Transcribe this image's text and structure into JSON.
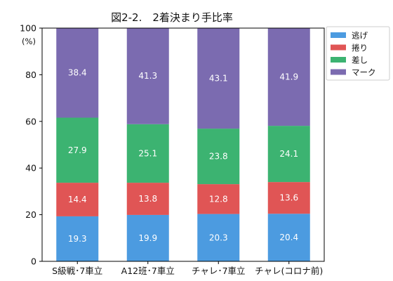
{
  "chart_data": {
    "type": "bar",
    "stacked": true,
    "title": "図2-2.　2着決まり手比率",
    "ylabel": "(%)",
    "ylim": [
      0,
      100
    ],
    "yticks": [
      0,
      20,
      40,
      60,
      80,
      100
    ],
    "grid": false,
    "legend": "right, outside top",
    "categories": [
      "S級戦･7車立",
      "A12班･7車立",
      "チャレ･7車立",
      "チャレ(コロナ前)"
    ],
    "series": [
      {
        "name": "逃げ",
        "color": "#4c9be0",
        "values": [
          19.3,
          19.9,
          20.3,
          20.4
        ]
      },
      {
        "name": "捲り",
        "color": "#e05555",
        "values": [
          14.4,
          13.8,
          12.8,
          13.6
        ]
      },
      {
        "name": "差し",
        "color": "#3cb371",
        "values": [
          27.9,
          25.1,
          23.8,
          24.1
        ]
      },
      {
        "name": "マーク",
        "color": "#7b6bb0",
        "values": [
          38.4,
          41.3,
          43.1,
          41.9
        ]
      }
    ]
  }
}
